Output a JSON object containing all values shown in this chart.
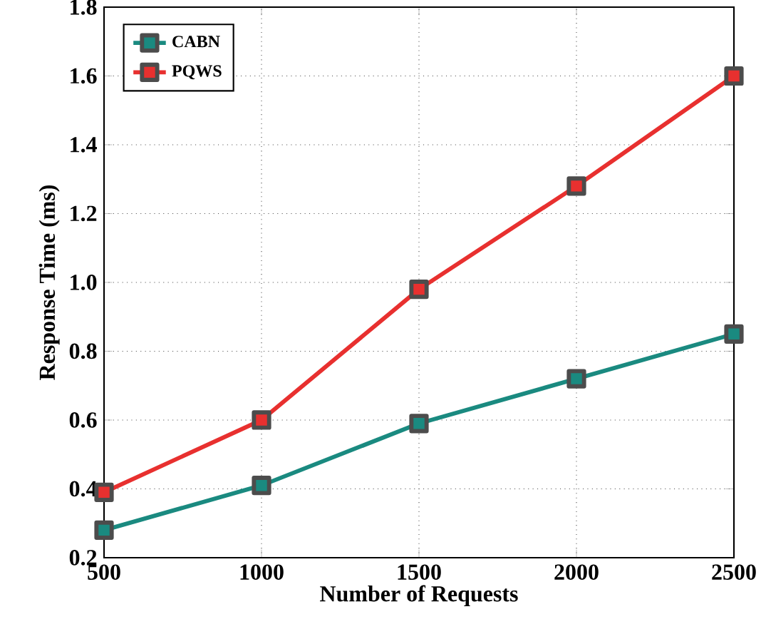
{
  "chart_data": {
    "type": "line",
    "xlabel": "Number of Requests",
    "ylabel": "Response Time (ms)",
    "x": [
      500,
      1000,
      1500,
      2000,
      2500
    ],
    "series": [
      {
        "name": "CABN",
        "color": "#1a8a80",
        "values": [
          0.28,
          0.41,
          0.59,
          0.72,
          0.85
        ]
      },
      {
        "name": "PQWS",
        "color": "#e8302f",
        "values": [
          0.39,
          0.6,
          0.98,
          1.28,
          1.6
        ]
      }
    ],
    "xlim": [
      500,
      2500
    ],
    "xticks": [
      500,
      1000,
      1500,
      2000,
      2500
    ],
    "ylim": [
      0.2,
      1.8
    ],
    "yticks": [
      {
        "value": 0.2,
        "label": "0.2"
      },
      {
        "value": 0.4,
        "label": "0.4"
      },
      {
        "value": 0.6,
        "label": "0.6"
      },
      {
        "value": 0.8,
        "label": "0.8"
      },
      {
        "value": 1.0,
        "label": "1.0"
      },
      {
        "value": 1.2,
        "label": "1.2"
      },
      {
        "value": 1.4,
        "label": "1.4"
      },
      {
        "value": 1.6,
        "label": "1.6"
      },
      {
        "value": 1.8,
        "label": "1.8"
      }
    ],
    "grid": true,
    "legend": "top left",
    "marker": "square",
    "line_style": "solid"
  }
}
